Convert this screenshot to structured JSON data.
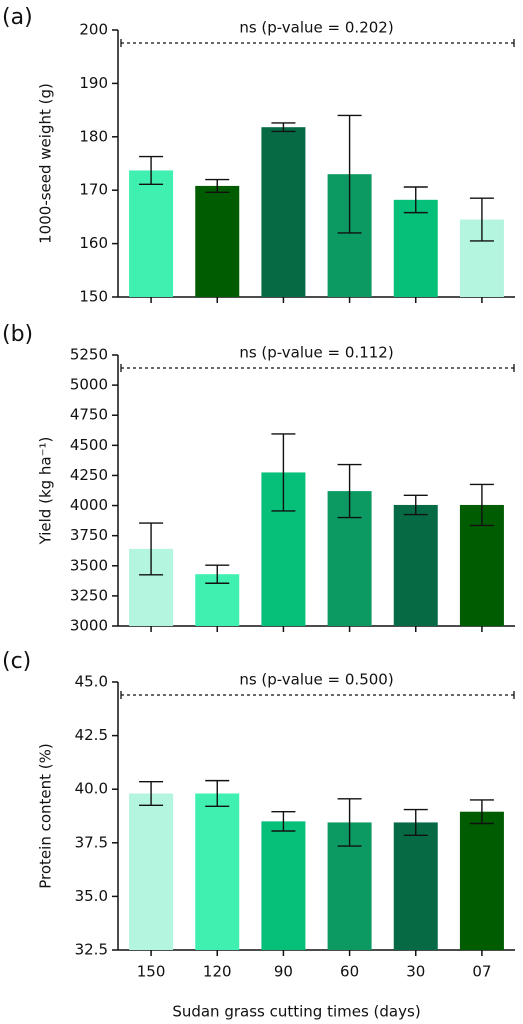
{
  "chart_data": [
    {
      "type": "bar",
      "label": "(a)",
      "annotation": "ns (p-value = 0.202)",
      "ylabel": "1000-seed weight (g)",
      "categories": [
        null,
        null,
        null,
        null,
        null,
        null
      ],
      "values": [
        173.7,
        170.8,
        181.8,
        173,
        168.2,
        164.5
      ],
      "errors": [
        2.6,
        1.2,
        0.8,
        11,
        2.4,
        4
      ],
      "colors": [
        "#3ff0b0",
        "#005c00",
        "#066b45",
        "#0c9a62",
        "#06c07a",
        "#b3f5de"
      ],
      "ylim": [
        150,
        200
      ],
      "yticks": [
        150,
        160,
        170,
        180,
        190,
        200
      ]
    },
    {
      "type": "bar",
      "label": "(b)",
      "annotation": "ns (p-value = 0.112)",
      "ylabel": "Yield (kg ha⁻¹)",
      "categories": [
        null,
        null,
        null,
        null,
        null,
        null
      ],
      "values": [
        3640,
        3430,
        4275,
        4120,
        4005,
        4005
      ],
      "errors": [
        215,
        75,
        320,
        220,
        80,
        170
      ],
      "colors": [
        "#b3f5de",
        "#3ff0b0",
        "#06c07a",
        "#0c9a62",
        "#066b45",
        "#005c00"
      ],
      "ylim": [
        3000,
        5250
      ],
      "yticks": [
        3000,
        3250,
        3500,
        3750,
        4000,
        4250,
        4500,
        4750,
        5000,
        5250
      ]
    },
    {
      "type": "bar",
      "label": "(c)",
      "annotation": "ns (p-value = 0.500)",
      "ylabel": "Protein content (%)",
      "xlabel": "Sudan grass cutting times (days)",
      "categories": [
        "150",
        "120",
        "90",
        "60",
        "30",
        "07"
      ],
      "values": [
        39.8,
        39.8,
        38.5,
        38.45,
        38.45,
        38.95
      ],
      "errors": [
        0.55,
        0.6,
        0.45,
        1.1,
        0.6,
        0.55
      ],
      "colors": [
        "#b3f5de",
        "#3ff0b0",
        "#06c07a",
        "#0c9a62",
        "#066b45",
        "#005c00"
      ],
      "ylim": [
        32.5,
        45
      ],
      "yticks": [
        32.5,
        {
          "value": 35,
          "label": "35.0"
        },
        37.5,
        {
          "value": 40,
          "label": "40.0"
        },
        42.5,
        {
          "value": 45,
          "label": "45.0"
        }
      ]
    }
  ]
}
